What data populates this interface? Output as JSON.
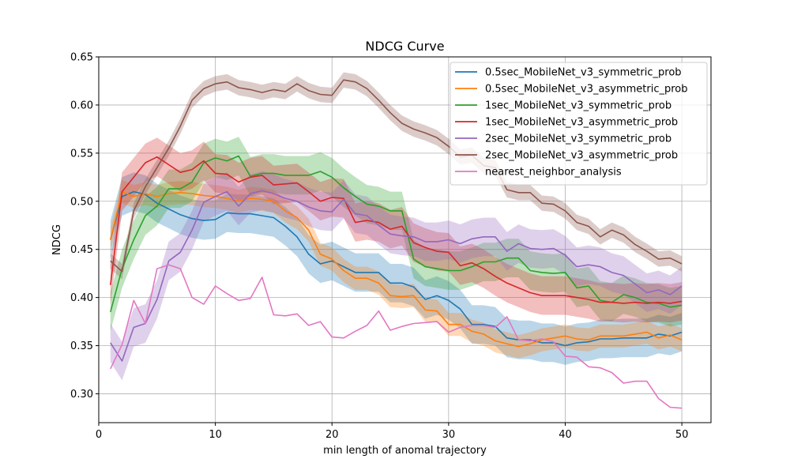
{
  "chart_data": {
    "type": "line",
    "title": "NDCG Curve",
    "xlabel": "min length of anomal trajectory",
    "ylabel": "NDCG",
    "xlim": [
      0,
      52.5
    ],
    "ylim": [
      0.27,
      0.65
    ],
    "xticks": [
      0,
      10,
      20,
      30,
      40,
      50
    ],
    "yticks": [
      0.3,
      0.35,
      0.4,
      0.45,
      0.5,
      0.55,
      0.6,
      0.65
    ],
    "grid": true,
    "legend_position": "top-right",
    "x": [
      1,
      2,
      3,
      4,
      5,
      6,
      7,
      8,
      9,
      10,
      11,
      12,
      13,
      14,
      15,
      16,
      17,
      18,
      19,
      20,
      21,
      22,
      23,
      24,
      25,
      26,
      27,
      28,
      29,
      30,
      31,
      32,
      33,
      34,
      35,
      36,
      37,
      38,
      39,
      40,
      41,
      42,
      43,
      44,
      45,
      46,
      47,
      48,
      49,
      50
    ],
    "series": [
      {
        "name": "0.5sec_MobileNet_v3_symmetric_prob",
        "color": "#1f77b4",
        "values": [
          0.46,
          0.505,
          0.51,
          0.507,
          0.498,
          0.492,
          0.486,
          0.482,
          0.48,
          0.481,
          0.488,
          0.487,
          0.487,
          0.485,
          0.483,
          0.474,
          0.463,
          0.445,
          0.435,
          0.438,
          0.432,
          0.426,
          0.426,
          0.426,
          0.415,
          0.415,
          0.411,
          0.398,
          0.402,
          0.397,
          0.388,
          0.372,
          0.372,
          0.37,
          0.358,
          0.356,
          0.356,
          0.353,
          0.353,
          0.35,
          0.353,
          0.354,
          0.357,
          0.357,
          0.358,
          0.358,
          0.358,
          0.362,
          0.36,
          0.364
        ],
        "band": 0.02
      },
      {
        "name": "0.5sec_MobileNet_v3_asymmetric_prob",
        "color": "#ff7f0e",
        "values": [
          0.46,
          0.51,
          0.505,
          0.508,
          0.505,
          0.508,
          0.509,
          0.508,
          0.506,
          0.505,
          0.503,
          0.5,
          0.503,
          0.502,
          0.5,
          0.49,
          0.483,
          0.47,
          0.445,
          0.44,
          0.428,
          0.42,
          0.42,
          0.415,
          0.402,
          0.401,
          0.402,
          0.387,
          0.386,
          0.372,
          0.372,
          0.365,
          0.362,
          0.355,
          0.352,
          0.349,
          0.352,
          0.356,
          0.358,
          0.36,
          0.357,
          0.356,
          0.36,
          0.36,
          0.36,
          0.362,
          0.364,
          0.358,
          0.361,
          0.356
        ],
        "band": 0.012
      },
      {
        "name": "1sec_MobileNet_v3_symmetric_prob",
        "color": "#2ca02c",
        "values": [
          0.385,
          0.43,
          0.46,
          0.485,
          0.495,
          0.513,
          0.513,
          0.52,
          0.54,
          0.545,
          0.542,
          0.547,
          0.526,
          0.529,
          0.529,
          0.527,
          0.527,
          0.527,
          0.531,
          0.525,
          0.514,
          0.505,
          0.497,
          0.495,
          0.49,
          0.49,
          0.44,
          0.432,
          0.43,
          0.428,
          0.428,
          0.432,
          0.437,
          0.437,
          0.441,
          0.441,
          0.428,
          0.426,
          0.425,
          0.426,
          0.41,
          0.412,
          0.397,
          0.395,
          0.403,
          0.4,
          0.395,
          0.394,
          0.39,
          0.392
        ],
        "band": 0.02
      },
      {
        "name": "1sec_MobileNet_v3_asymmetric_prob",
        "color": "#d62728",
        "values": [
          0.413,
          0.51,
          0.525,
          0.54,
          0.546,
          0.538,
          0.53,
          0.533,
          0.542,
          0.529,
          0.528,
          0.52,
          0.525,
          0.527,
          0.517,
          0.518,
          0.519,
          0.51,
          0.5,
          0.504,
          0.503,
          0.478,
          0.48,
          0.478,
          0.471,
          0.474,
          0.457,
          0.452,
          0.448,
          0.447,
          0.433,
          0.436,
          0.43,
          0.422,
          0.415,
          0.41,
          0.405,
          0.402,
          0.402,
          0.402,
          0.4,
          0.398,
          0.395,
          0.395,
          0.394,
          0.395,
          0.394,
          0.395,
          0.394,
          0.396
        ],
        "band": 0.02
      },
      {
        "name": "2sec_MobileNet_v3_symmetric_prob",
        "color": "#9467bd",
        "values": [
          0.353,
          0.334,
          0.369,
          0.373,
          0.398,
          0.438,
          0.447,
          0.47,
          0.499,
          0.505,
          0.51,
          0.495,
          0.508,
          0.511,
          0.508,
          0.503,
          0.5,
          0.494,
          0.49,
          0.489,
          0.502,
          0.487,
          0.485,
          0.475,
          0.466,
          0.464,
          0.463,
          0.458,
          0.458,
          0.46,
          0.456,
          0.461,
          0.463,
          0.463,
          0.448,
          0.456,
          0.451,
          0.45,
          0.451,
          0.444,
          0.432,
          0.434,
          0.432,
          0.426,
          0.423,
          0.414,
          0.405,
          0.408,
          0.403,
          0.412
        ],
        "band": 0.02
      },
      {
        "name": "2sec_MobileNet_v3_asymmetric_prob",
        "color": "#8c564b",
        "values": [
          0.438,
          0.427,
          0.49,
          0.515,
          0.535,
          0.555,
          0.578,
          0.605,
          0.617,
          0.622,
          0.624,
          0.618,
          0.616,
          0.613,
          0.616,
          0.614,
          0.622,
          0.615,
          0.611,
          0.61,
          0.626,
          0.624,
          0.617,
          0.605,
          0.592,
          0.581,
          0.575,
          0.571,
          0.566,
          0.557,
          0.546,
          0.548,
          0.537,
          0.535,
          0.512,
          0.509,
          0.509,
          0.498,
          0.497,
          0.49,
          0.478,
          0.474,
          0.463,
          0.47,
          0.465,
          0.455,
          0.448,
          0.44,
          0.441,
          0.435
        ],
        "band": 0.008
      },
      {
        "name": "nearest_neighbor_analysis",
        "color": "#e377c2",
        "values": [
          0.326,
          0.351,
          0.397,
          0.373,
          0.43,
          0.434,
          0.43,
          0.4,
          0.393,
          0.412,
          0.404,
          0.397,
          0.399,
          0.421,
          0.382,
          0.381,
          0.383,
          0.371,
          0.375,
          0.359,
          0.358,
          0.365,
          0.371,
          0.386,
          0.366,
          0.37,
          0.373,
          0.374,
          0.375,
          0.364,
          0.369,
          0.371,
          0.371,
          0.369,
          0.38,
          0.356,
          0.355,
          0.357,
          0.354,
          0.339,
          0.338,
          0.328,
          0.327,
          0.322,
          0.311,
          0.313,
          0.313,
          0.295,
          0.286,
          0.285
        ],
        "band": 0
      }
    ]
  }
}
